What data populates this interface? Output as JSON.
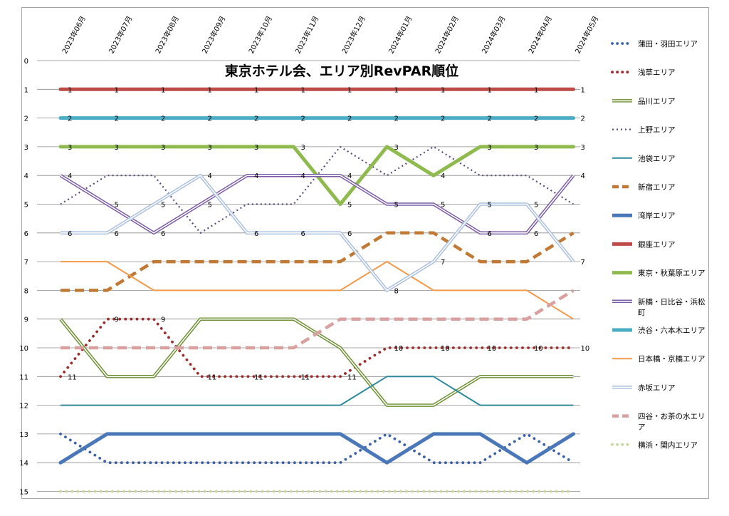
{
  "chart_data": {
    "type": "line",
    "title": "東京ホテル会、エリア別RevPAR順位",
    "xlabel": "",
    "ylabel": "",
    "ylim": [
      0,
      15
    ],
    "y_inverted": true,
    "y_ticks": [
      "0",
      "1",
      "2",
      "3",
      "4",
      "5",
      "6",
      "7",
      "8",
      "9",
      "10",
      "11",
      "12",
      "13",
      "14",
      "15"
    ],
    "categories": [
      "2023年06月",
      "2023年07月",
      "2023年08月",
      "2023年09月",
      "2023年10月",
      "2023年11月",
      "2023年12月",
      "2024年01月",
      "2024年02月",
      "2024年03月",
      "2024年04月",
      "2024年05月"
    ],
    "grid": true,
    "legend_position": "right",
    "series": [
      {
        "name": "蒲田・羽田エリア",
        "color": "#3b62a8",
        "style": "dots",
        "values": [
          13,
          14,
          14,
          14,
          14,
          14,
          14,
          13,
          14,
          14,
          13,
          14
        ],
        "labels": false
      },
      {
        "name": "浅草エリア",
        "color": "#9b2d2d",
        "style": "dots",
        "values": [
          11,
          9,
          9,
          11,
          11,
          11,
          11,
          10,
          10,
          10,
          10,
          10
        ],
        "labels": true
      },
      {
        "name": "品川エリア",
        "color": "#6b8f2f",
        "style": "double",
        "values": [
          9,
          11,
          11,
          9,
          9,
          9,
          10,
          12,
          12,
          11,
          11,
          11
        ],
        "labels": false
      },
      {
        "name": "上野エリア",
        "color": "#5a4a7e",
        "style": "dotted",
        "values": [
          5,
          4,
          4,
          6,
          5,
          5,
          3,
          4,
          3,
          4,
          4,
          5
        ],
        "labels": false
      },
      {
        "name": "池袋エリア",
        "color": "#2e8a9a",
        "style": "thin",
        "values": [
          12,
          12,
          12,
          12,
          12,
          12,
          12,
          11,
          11,
          12,
          12,
          12
        ],
        "labels": false
      },
      {
        "name": "新宿エリア",
        "color": "#c07a35",
        "style": "dash",
        "values": [
          8,
          8,
          7,
          7,
          7,
          7,
          7,
          6,
          6,
          7,
          7,
          6
        ],
        "labels": false
      },
      {
        "name": "湾岸エリア",
        "color": "#4a77b8",
        "style": "thick",
        "values": [
          14,
          13,
          13,
          13,
          13,
          13,
          13,
          14,
          13,
          13,
          14,
          13
        ],
        "labels": false
      },
      {
        "name": "銀座エリア",
        "color": "#bd4b48",
        "style": "thick",
        "values": [
          1,
          1,
          1,
          1,
          1,
          1,
          1,
          1,
          1,
          1,
          1,
          1
        ],
        "labels": true
      },
      {
        "name": "東京・秋葉原エリア",
        "color": "#8fba4e",
        "style": "thick",
        "values": [
          3,
          3,
          3,
          3,
          3,
          3,
          5,
          3,
          4,
          3,
          3,
          3
        ],
        "labels": true
      },
      {
        "name": "新橋・日比谷・浜松町",
        "color": "#7a5aa6",
        "style": "double",
        "values": [
          4,
          5,
          6,
          5,
          4,
          4,
          4,
          5,
          5,
          6,
          6,
          4
        ],
        "labels": true
      },
      {
        "name": "渋谷・六本木エリア",
        "color": "#4aacc5",
        "style": "thick",
        "values": [
          2,
          2,
          2,
          2,
          2,
          2,
          2,
          2,
          2,
          2,
          2,
          2
        ],
        "labels": true
      },
      {
        "name": "日本橋・京橋エリア",
        "color": "#f2994a",
        "style": "thin",
        "values": [
          7,
          7,
          8,
          8,
          8,
          8,
          8,
          7,
          8,
          8,
          8,
          9
        ],
        "labels": false
      },
      {
        "name": "赤坂エリア",
        "color": "#a9bfe0",
        "style": "double",
        "values": [
          6,
          6,
          5,
          4,
          6,
          6,
          6,
          8,
          7,
          5,
          5,
          7
        ],
        "labels": true
      },
      {
        "name": "四谷・お茶の水エリア",
        "color": "#d9a0a0",
        "style": "dash",
        "values": [
          10,
          10,
          10,
          10,
          10,
          10,
          9,
          9,
          9,
          9,
          9,
          8
        ],
        "labels": false
      },
      {
        "name": "横浜・関内エリア",
        "color": "#c4d79b",
        "style": "dots",
        "values": [
          15,
          15,
          15,
          15,
          15,
          15,
          15,
          15,
          15,
          15,
          15,
          15
        ],
        "labels": false
      }
    ]
  }
}
